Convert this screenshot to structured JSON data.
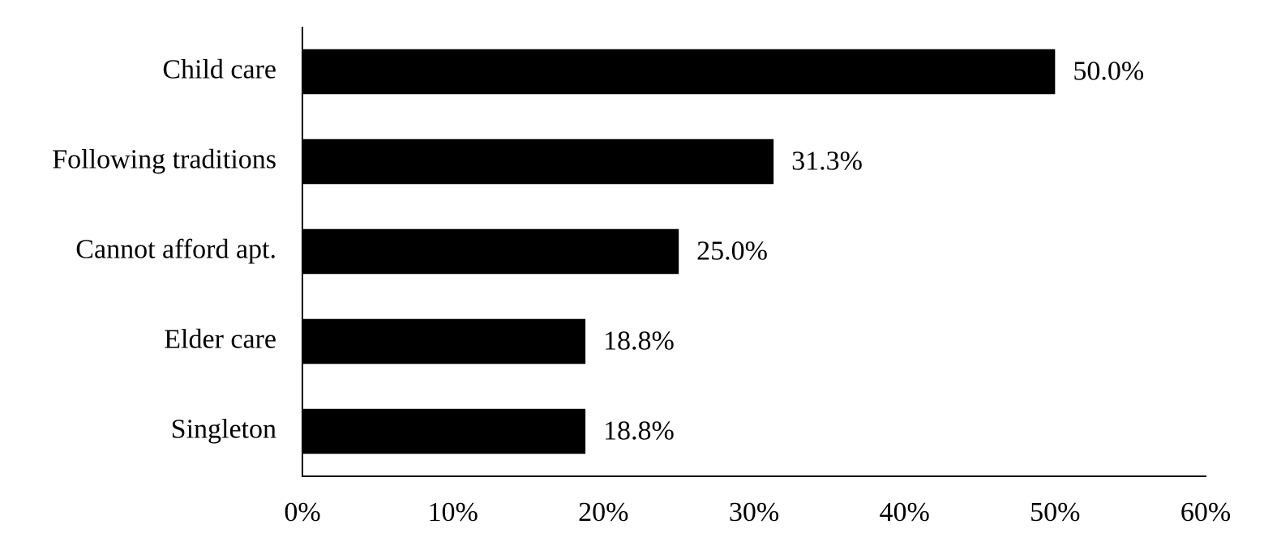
{
  "chart_data": {
    "type": "bar",
    "orientation": "horizontal",
    "categories": [
      "Child care",
      "Following traditions",
      "Cannot afford apt.",
      "Elder care",
      "Singleton"
    ],
    "values": [
      50.0,
      31.3,
      25.0,
      18.8,
      18.8
    ],
    "value_labels": [
      "50.0%",
      "31.3%",
      "25.0%",
      "18.8%",
      "18.8%"
    ],
    "color": "#000000",
    "xlim": [
      0,
      60
    ],
    "xticks": [
      {
        "value": 0,
        "label": "0%"
      },
      {
        "value": 10,
        "label": "10%"
      },
      {
        "value": 20,
        "label": "20%"
      },
      {
        "value": 30,
        "label": "30%"
      },
      {
        "value": 40,
        "label": "40%"
      },
      {
        "value": 50,
        "label": "50%"
      },
      {
        "value": 60,
        "label": "60%"
      }
    ],
    "grid": false
  }
}
